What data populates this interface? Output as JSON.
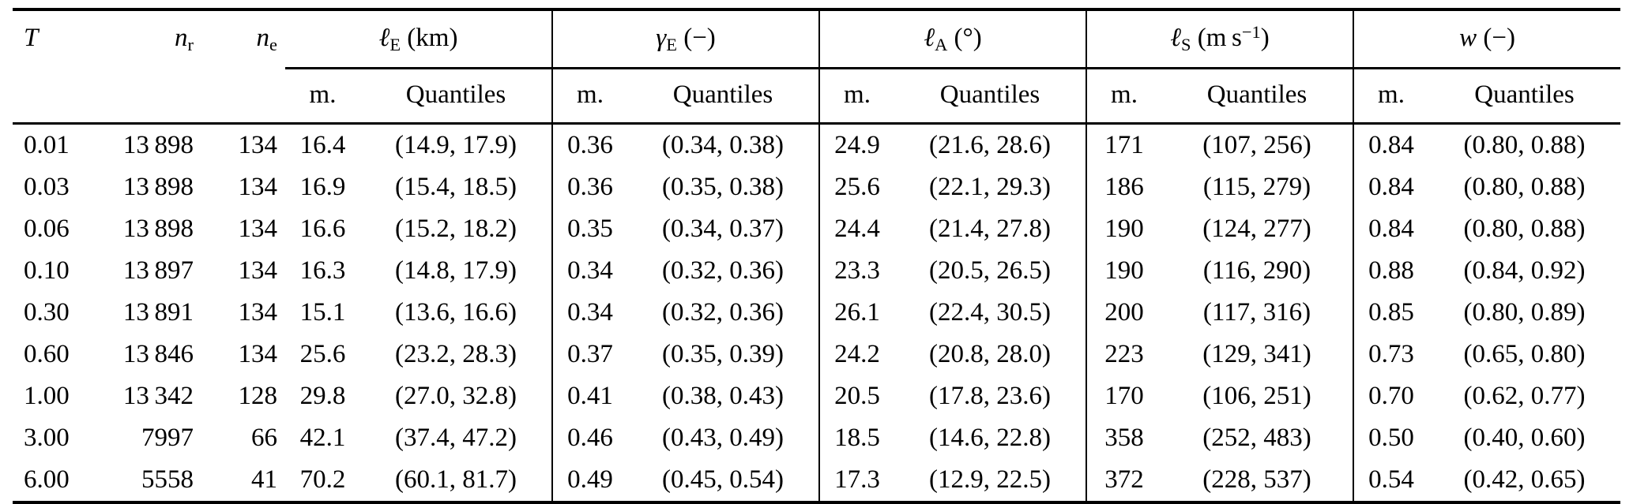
{
  "page": {
    "background": "#ffffff",
    "text_color": "#000000",
    "rule_color": "#000000"
  },
  "table": {
    "id_columns": [
      {
        "sym": "T",
        "sub": ""
      },
      {
        "sym": "n",
        "sub": "r"
      },
      {
        "sym": "n",
        "sub": "e"
      }
    ],
    "groups": [
      {
        "sym": "ℓ",
        "sub": "E",
        "unit_pre": " (km)",
        "unit_sup": "",
        "unit_post": ""
      },
      {
        "sym": "γ",
        "sub": "E",
        "unit_pre": " (−)",
        "unit_sup": "",
        "unit_post": ""
      },
      {
        "sym": "ℓ",
        "sub": "A",
        "unit_pre": " (°)",
        "unit_sup": "",
        "unit_post": ""
      },
      {
        "sym": "ℓ",
        "sub": "S",
        "unit_pre": " (m s",
        "unit_sup": "−1",
        "unit_post": ")"
      },
      {
        "sym": "w",
        "sub": "",
        "unit_pre": " (−)",
        "unit_sup": "",
        "unit_post": ""
      }
    ],
    "stat_headers": {
      "mean": "m.",
      "quantiles": "Quantiles"
    },
    "rows": [
      [
        "0.01",
        "13 898",
        "134",
        "16.4",
        "(14.9, 17.9)",
        "0.36",
        "(0.34, 0.38)",
        "24.9",
        "(21.6, 28.6)",
        "171",
        "(107, 256)",
        "0.84",
        "(0.80, 0.88)"
      ],
      [
        "0.03",
        "13 898",
        "134",
        "16.9",
        "(15.4, 18.5)",
        "0.36",
        "(0.35, 0.38)",
        "25.6",
        "(22.1, 29.3)",
        "186",
        "(115, 279)",
        "0.84",
        "(0.80, 0.88)"
      ],
      [
        "0.06",
        "13 898",
        "134",
        "16.6",
        "(15.2, 18.2)",
        "0.35",
        "(0.34, 0.37)",
        "24.4",
        "(21.4, 27.8)",
        "190",
        "(124, 277)",
        "0.84",
        "(0.80, 0.88)"
      ],
      [
        "0.10",
        "13 897",
        "134",
        "16.3",
        "(14.8, 17.9)",
        "0.34",
        "(0.32, 0.36)",
        "23.3",
        "(20.5, 26.5)",
        "190",
        "(116, 290)",
        "0.88",
        "(0.84, 0.92)"
      ],
      [
        "0.30",
        "13 891",
        "134",
        "15.1",
        "(13.6, 16.6)",
        "0.34",
        "(0.32, 0.36)",
        "26.1",
        "(22.4, 30.5)",
        "200",
        "(117, 316)",
        "0.85",
        "(0.80, 0.89)"
      ],
      [
        "0.60",
        "13 846",
        "134",
        "25.6",
        "(23.2, 28.3)",
        "0.37",
        "(0.35, 0.39)",
        "24.2",
        "(20.8, 28.0)",
        "223",
        "(129, 341)",
        "0.73",
        "(0.65, 0.80)"
      ],
      [
        "1.00",
        "13 342",
        "128",
        "29.8",
        "(27.0, 32.8)",
        "0.41",
        "(0.38, 0.43)",
        "20.5",
        "(17.8, 23.6)",
        "170",
        "(106, 251)",
        "0.70",
        "(0.62, 0.77)"
      ],
      [
        "3.00",
        "7997",
        "66",
        "42.1",
        "(37.4, 47.2)",
        "0.46",
        "(0.43, 0.49)",
        "18.5",
        "(14.6, 22.8)",
        "358",
        "(252, 483)",
        "0.50",
        "(0.40, 0.60)"
      ],
      [
        "6.00",
        "5558",
        "41",
        "70.2",
        "(60.1, 81.7)",
        "0.49",
        "(0.45, 0.54)",
        "17.3",
        "(12.9, 22.5)",
        "372",
        "(228, 537)",
        "0.54",
        "(0.42, 0.65)"
      ]
    ]
  }
}
